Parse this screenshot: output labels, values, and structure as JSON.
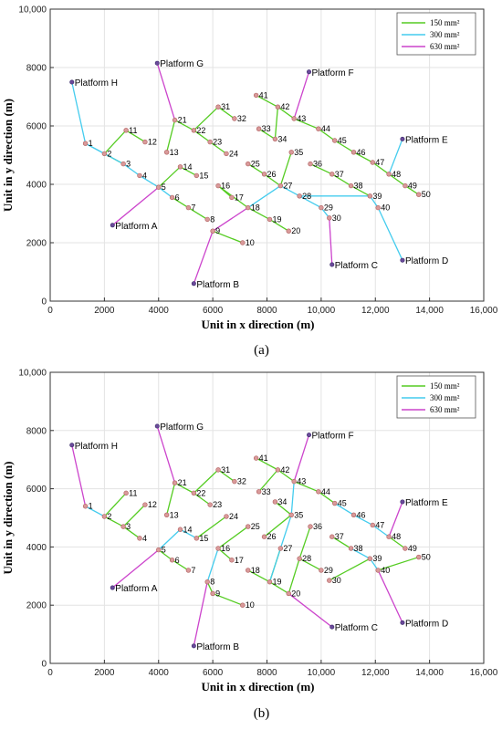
{
  "colors": {
    "c150": "#55cc22",
    "c300": "#44ccee",
    "c630": "#cc44cc",
    "node": "#d99a9a"
  },
  "chart_data": [
    {
      "type": "scatter",
      "panel_label": "(a)",
      "xlabel": "Unit in x direction (m)",
      "ylabel": "Unit in y direction (m)",
      "xlim": [
        0,
        16000
      ],
      "ylim": [
        0,
        10000
      ],
      "xticks": [
        0,
        2000,
        4000,
        6000,
        8000,
        10000,
        12000,
        14000,
        16000
      ],
      "yticks": [
        0,
        2000,
        4000,
        6000,
        8000,
        10000
      ],
      "xtick_labels": [
        "0",
        "2000",
        "4000",
        "6000",
        "8000",
        "10,000",
        "12,000",
        "14,000",
        "16,000"
      ],
      "ytick_labels": [
        "0",
        "2000",
        "4000",
        "6000",
        "8000",
        "10,000"
      ],
      "grid": true,
      "legend_position": "top-right",
      "legend": [
        {
          "key": "150",
          "label": "150 mm²"
        },
        {
          "key": "300",
          "label": "300 mm²"
        },
        {
          "key": "630",
          "label": "630 mm²"
        }
      ],
      "platforms": [
        {
          "name": "Platform H",
          "x": 800,
          "y": 7500
        },
        {
          "name": "Platform G",
          "x": 3950,
          "y": 8150
        },
        {
          "name": "Platform F",
          "x": 9550,
          "y": 7850
        },
        {
          "name": "Platform E",
          "x": 13000,
          "y": 5550
        },
        {
          "name": "Platform A",
          "x": 2300,
          "y": 2600
        },
        {
          "name": "Platform B",
          "x": 5300,
          "y": 600
        },
        {
          "name": "Platform C",
          "x": 10400,
          "y": 1250
        },
        {
          "name": "Platform D",
          "x": 13000,
          "y": 1400
        }
      ],
      "nodes": [
        {
          "id": "1",
          "x": 1300,
          "y": 5400
        },
        {
          "id": "2",
          "x": 2000,
          "y": 5050
        },
        {
          "id": "3",
          "x": 2700,
          "y": 4700
        },
        {
          "id": "4",
          "x": 3300,
          "y": 4300
        },
        {
          "id": "5",
          "x": 4000,
          "y": 3900
        },
        {
          "id": "6",
          "x": 4500,
          "y": 3550
        },
        {
          "id": "7",
          "x": 5100,
          "y": 3200
        },
        {
          "id": "8",
          "x": 5800,
          "y": 2800
        },
        {
          "id": "9",
          "x": 6000,
          "y": 2400
        },
        {
          "id": "10",
          "x": 7100,
          "y": 2000
        },
        {
          "id": "11",
          "x": 2800,
          "y": 5850
        },
        {
          "id": "12",
          "x": 3500,
          "y": 5450
        },
        {
          "id": "13",
          "x": 4300,
          "y": 5100
        },
        {
          "id": "14",
          "x": 4800,
          "y": 4600
        },
        {
          "id": "15",
          "x": 5400,
          "y": 4300
        },
        {
          "id": "16",
          "x": 6200,
          "y": 3950
        },
        {
          "id": "17",
          "x": 6700,
          "y": 3550
        },
        {
          "id": "18",
          "x": 7300,
          "y": 3200
        },
        {
          "id": "19",
          "x": 8100,
          "y": 2800
        },
        {
          "id": "20",
          "x": 8800,
          "y": 2400
        },
        {
          "id": "21",
          "x": 4600,
          "y": 6200
        },
        {
          "id": "22",
          "x": 5300,
          "y": 5850
        },
        {
          "id": "23",
          "x": 5900,
          "y": 5450
        },
        {
          "id": "24",
          "x": 6500,
          "y": 5050
        },
        {
          "id": "25",
          "x": 7300,
          "y": 4700
        },
        {
          "id": "26",
          "x": 7900,
          "y": 4350
        },
        {
          "id": "27",
          "x": 8500,
          "y": 3950
        },
        {
          "id": "28",
          "x": 9200,
          "y": 3600
        },
        {
          "id": "29",
          "x": 10000,
          "y": 3200
        },
        {
          "id": "30",
          "x": 10300,
          "y": 2850
        },
        {
          "id": "31",
          "x": 6200,
          "y": 6650
        },
        {
          "id": "32",
          "x": 6800,
          "y": 6250
        },
        {
          "id": "33",
          "x": 7700,
          "y": 5900
        },
        {
          "id": "34",
          "x": 8300,
          "y": 5550
        },
        {
          "id": "35",
          "x": 8900,
          "y": 5100
        },
        {
          "id": "36",
          "x": 9600,
          "y": 4700
        },
        {
          "id": "37",
          "x": 10400,
          "y": 4350
        },
        {
          "id": "38",
          "x": 11100,
          "y": 3950
        },
        {
          "id": "39",
          "x": 11800,
          "y": 3600
        },
        {
          "id": "40",
          "x": 12100,
          "y": 3200
        },
        {
          "id": "41",
          "x": 7600,
          "y": 7050
        },
        {
          "id": "42",
          "x": 8400,
          "y": 6650
        },
        {
          "id": "43",
          "x": 9000,
          "y": 6250
        },
        {
          "id": "44",
          "x": 9900,
          "y": 5900
        },
        {
          "id": "45",
          "x": 10500,
          "y": 5500
        },
        {
          "id": "46",
          "x": 11200,
          "y": 5100
        },
        {
          "id": "47",
          "x": 11900,
          "y": 4750
        },
        {
          "id": "48",
          "x": 12500,
          "y": 4350
        },
        {
          "id": "49",
          "x": 13100,
          "y": 3950
        },
        {
          "id": "50",
          "x": 13600,
          "y": 3650
        }
      ],
      "edges": [
        [
          "Platform H",
          "1",
          "300"
        ],
        [
          "1",
          "2",
          "300"
        ],
        [
          "2",
          "3",
          "150"
        ],
        [
          "2",
          "11",
          "150"
        ],
        [
          "11",
          "12",
          "150"
        ],
        [
          "1",
          "3",
          "300"
        ],
        [
          "3",
          "4",
          "300"
        ],
        [
          "4",
          "5",
          "300"
        ],
        [
          "5",
          "6",
          "300"
        ],
        [
          "6",
          "7",
          "150"
        ],
        [
          "7",
          "8",
          "150"
        ],
        [
          "5",
          "Platform A",
          "630"
        ],
        [
          "5",
          "14",
          "150"
        ],
        [
          "14",
          "15",
          "150"
        ],
        [
          "Platform G",
          "21",
          "630"
        ],
        [
          "21",
          "13",
          "150"
        ],
        [
          "21",
          "22",
          "150"
        ],
        [
          "22",
          "23",
          "150"
        ],
        [
          "23",
          "24",
          "150"
        ],
        [
          "22",
          "31",
          "150"
        ],
        [
          "31",
          "32",
          "150"
        ],
        [
          "Platform B",
          "9",
          "630"
        ],
        [
          "9",
          "10",
          "150"
        ],
        [
          "9",
          "18",
          "630"
        ],
        [
          "18",
          "16",
          "150"
        ],
        [
          "16",
          "17",
          "150"
        ],
        [
          "18",
          "19",
          "150"
        ],
        [
          "19",
          "20",
          "150"
        ],
        [
          "18",
          "27",
          "300"
        ],
        [
          "27",
          "26",
          "150"
        ],
        [
          "26",
          "25",
          "150"
        ],
        [
          "27",
          "35",
          "150"
        ],
        [
          "27",
          "28",
          "300"
        ],
        [
          "28",
          "29",
          "300"
        ],
        [
          "29",
          "30",
          "300"
        ],
        [
          "30",
          "Platform C",
          "630"
        ],
        [
          "33",
          "34",
          "150"
        ],
        [
          "34",
          "42",
          "150"
        ],
        [
          "42",
          "41",
          "150"
        ],
        [
          "42",
          "43",
          "150"
        ],
        [
          "43",
          "Platform F",
          "630"
        ],
        [
          "43",
          "44",
          "150"
        ],
        [
          "44",
          "45",
          "150"
        ],
        [
          "45",
          "46",
          "150"
        ],
        [
          "46",
          "47",
          "150"
        ],
        [
          "47",
          "48",
          "150"
        ],
        [
          "48",
          "49",
          "150"
        ],
        [
          "49",
          "50",
          "150"
        ],
        [
          "48",
          "Platform E",
          "300"
        ],
        [
          "36",
          "37",
          "150"
        ],
        [
          "37",
          "38",
          "150"
        ],
        [
          "38",
          "39",
          "150"
        ],
        [
          "39",
          "40",
          "300"
        ],
        [
          "40",
          "Platform D",
          "300"
        ],
        [
          "28",
          "39",
          "300"
        ]
      ]
    },
    {
      "type": "scatter",
      "panel_label": "(b)",
      "xlabel": "Unit in x direction (m)",
      "ylabel": "Unit in y direction (m)",
      "xlim": [
        0,
        16000
      ],
      "ylim": [
        0,
        10000
      ],
      "xticks": [
        0,
        2000,
        4000,
        6000,
        8000,
        10000,
        12000,
        14000,
        16000
      ],
      "yticks": [
        0,
        2000,
        4000,
        6000,
        8000,
        10000
      ],
      "xtick_labels": [
        "0",
        "2000",
        "4000",
        "6000",
        "8000",
        "10,000",
        "12,000",
        "14,000",
        "16,000"
      ],
      "ytick_labels": [
        "0",
        "2000",
        "4000",
        "6000",
        "8000",
        "10,000"
      ],
      "grid": true,
      "legend_position": "top-right",
      "legend": [
        {
          "key": "150",
          "label": "150 mm²"
        },
        {
          "key": "300",
          "label": "300 mm²"
        },
        {
          "key": "630",
          "label": "630 mm²"
        }
      ],
      "platforms": [
        {
          "name": "Platform H",
          "x": 800,
          "y": 7500
        },
        {
          "name": "Platform G",
          "x": 3950,
          "y": 8150
        },
        {
          "name": "Platform F",
          "x": 9550,
          "y": 7850
        },
        {
          "name": "Platform E",
          "x": 13000,
          "y": 5550
        },
        {
          "name": "Platform A",
          "x": 2300,
          "y": 2600
        },
        {
          "name": "Platform B",
          "x": 5300,
          "y": 600
        },
        {
          "name": "Platform C",
          "x": 10400,
          "y": 1250
        },
        {
          "name": "Platform D",
          "x": 13000,
          "y": 1400
        }
      ],
      "nodes": [
        {
          "id": "1",
          "x": 1300,
          "y": 5400
        },
        {
          "id": "2",
          "x": 2000,
          "y": 5050
        },
        {
          "id": "3",
          "x": 2700,
          "y": 4700
        },
        {
          "id": "4",
          "x": 3300,
          "y": 4300
        },
        {
          "id": "5",
          "x": 4000,
          "y": 3900
        },
        {
          "id": "6",
          "x": 4500,
          "y": 3550
        },
        {
          "id": "7",
          "x": 5100,
          "y": 3200
        },
        {
          "id": "8",
          "x": 5800,
          "y": 2800
        },
        {
          "id": "9",
          "x": 6000,
          "y": 2400
        },
        {
          "id": "10",
          "x": 7100,
          "y": 2000
        },
        {
          "id": "11",
          "x": 2800,
          "y": 5850
        },
        {
          "id": "12",
          "x": 3500,
          "y": 5450
        },
        {
          "id": "13",
          "x": 4300,
          "y": 5100
        },
        {
          "id": "14",
          "x": 4800,
          "y": 4600
        },
        {
          "id": "15",
          "x": 5400,
          "y": 4300
        },
        {
          "id": "16",
          "x": 6200,
          "y": 3950
        },
        {
          "id": "17",
          "x": 6700,
          "y": 3550
        },
        {
          "id": "18",
          "x": 7300,
          "y": 3200
        },
        {
          "id": "19",
          "x": 8100,
          "y": 2800
        },
        {
          "id": "20",
          "x": 8800,
          "y": 2400
        },
        {
          "id": "21",
          "x": 4600,
          "y": 6200
        },
        {
          "id": "22",
          "x": 5300,
          "y": 5850
        },
        {
          "id": "23",
          "x": 5900,
          "y": 5450
        },
        {
          "id": "24",
          "x": 6500,
          "y": 5050
        },
        {
          "id": "25",
          "x": 7300,
          "y": 4700
        },
        {
          "id": "26",
          "x": 7900,
          "y": 4350
        },
        {
          "id": "27",
          "x": 8500,
          "y": 3950
        },
        {
          "id": "28",
          "x": 9200,
          "y": 3600
        },
        {
          "id": "29",
          "x": 10000,
          "y": 3200
        },
        {
          "id": "30",
          "x": 10300,
          "y": 2850
        },
        {
          "id": "31",
          "x": 6200,
          "y": 6650
        },
        {
          "id": "32",
          "x": 6800,
          "y": 6250
        },
        {
          "id": "33",
          "x": 7700,
          "y": 5900
        },
        {
          "id": "34",
          "x": 8300,
          "y": 5550
        },
        {
          "id": "35",
          "x": 8900,
          "y": 5100
        },
        {
          "id": "36",
          "x": 9600,
          "y": 4700
        },
        {
          "id": "37",
          "x": 10400,
          "y": 4350
        },
        {
          "id": "38",
          "x": 11100,
          "y": 3950
        },
        {
          "id": "39",
          "x": 11800,
          "y": 3600
        },
        {
          "id": "40",
          "x": 12100,
          "y": 3200
        },
        {
          "id": "41",
          "x": 7600,
          "y": 7050
        },
        {
          "id": "42",
          "x": 8400,
          "y": 6650
        },
        {
          "id": "43",
          "x": 9000,
          "y": 6250
        },
        {
          "id": "44",
          "x": 9900,
          "y": 5900
        },
        {
          "id": "45",
          "x": 10500,
          "y": 5500
        },
        {
          "id": "46",
          "x": 11200,
          "y": 5100
        },
        {
          "id": "47",
          "x": 11900,
          "y": 4750
        },
        {
          "id": "48",
          "x": 12500,
          "y": 4350
        },
        {
          "id": "49",
          "x": 13100,
          "y": 3950
        },
        {
          "id": "50",
          "x": 13600,
          "y": 3650
        }
      ],
      "edges": [
        [
          "Platform H",
          "1",
          "630"
        ],
        [
          "1",
          "2",
          "300"
        ],
        [
          "2",
          "11",
          "150"
        ],
        [
          "2",
          "3",
          "150"
        ],
        [
          "3",
          "12",
          "150"
        ],
        [
          "3",
          "4",
          "150"
        ],
        [
          "Platform G",
          "21",
          "630"
        ],
        [
          "21",
          "13",
          "150"
        ],
        [
          "21",
          "22",
          "150"
        ],
        [
          "22",
          "23",
          "150"
        ],
        [
          "22",
          "31",
          "150"
        ],
        [
          "31",
          "32",
          "150"
        ],
        [
          "Platform A",
          "5",
          "630"
        ],
        [
          "5",
          "14",
          "300"
        ],
        [
          "14",
          "15",
          "300"
        ],
        [
          "15",
          "24",
          "150"
        ],
        [
          "5",
          "6",
          "150"
        ],
        [
          "6",
          "7",
          "150"
        ],
        [
          "Platform B",
          "8",
          "630"
        ],
        [
          "8",
          "16",
          "300"
        ],
        [
          "16",
          "25",
          "150"
        ],
        [
          "16",
          "17",
          "150"
        ],
        [
          "8",
          "9",
          "150"
        ],
        [
          "9",
          "10",
          "150"
        ],
        [
          "Platform C",
          "20",
          "630"
        ],
        [
          "20",
          "19",
          "150"
        ],
        [
          "19",
          "18",
          "150"
        ],
        [
          "19",
          "27",
          "150"
        ],
        [
          "19",
          "35",
          "300"
        ],
        [
          "35",
          "26",
          "150"
        ],
        [
          "35",
          "34",
          "150"
        ],
        [
          "35",
          "43",
          "300"
        ],
        [
          "Platform F",
          "43",
          "630"
        ],
        [
          "43",
          "42",
          "150"
        ],
        [
          "42",
          "41",
          "150"
        ],
        [
          "42",
          "33",
          "150"
        ],
        [
          "43",
          "44",
          "150"
        ],
        [
          "44",
          "45",
          "150"
        ],
        [
          "45",
          "46",
          "300"
        ],
        [
          "46",
          "47",
          "300"
        ],
        [
          "47",
          "48",
          "300"
        ],
        [
          "48",
          "Platform E",
          "630"
        ],
        [
          "48",
          "49",
          "150"
        ],
        [
          "Platform D",
          "40",
          "630"
        ],
        [
          "40",
          "50",
          "150"
        ],
        [
          "40",
          "39",
          "300"
        ],
        [
          "39",
          "38",
          "300"
        ],
        [
          "38",
          "37",
          "150"
        ],
        [
          "39",
          "30",
          "150"
        ],
        [
          "20",
          "28",
          "150"
        ],
        [
          "28",
          "36",
          "150"
        ],
        [
          "28",
          "29",
          "150"
        ]
      ]
    }
  ]
}
